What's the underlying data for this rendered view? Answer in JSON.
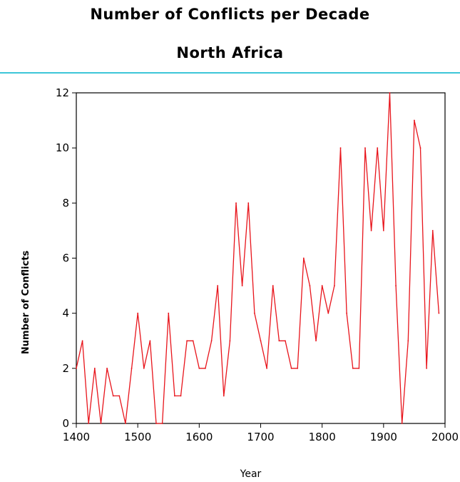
{
  "chart_data": {
    "type": "line",
    "title": "Number of Conflicts per Decade",
    "subtitle": "North Africa",
    "xlabel": "Year",
    "ylabel": "Number of Conflicts",
    "xlim": [
      1400,
      2000
    ],
    "ylim": [
      0,
      12
    ],
    "xticks": [
      1400,
      1500,
      1600,
      1700,
      1800,
      1900,
      2000
    ],
    "yticks": [
      0,
      2,
      4,
      6,
      8,
      10,
      12
    ],
    "grid": false,
    "legend": "none",
    "series": [
      {
        "color": "#e8141b",
        "x": [
          1400,
          1410,
          1420,
          1430,
          1440,
          1450,
          1460,
          1470,
          1480,
          1490,
          1500,
          1510,
          1520,
          1530,
          1540,
          1550,
          1560,
          1570,
          1580,
          1590,
          1600,
          1610,
          1620,
          1630,
          1640,
          1650,
          1660,
          1670,
          1680,
          1690,
          1700,
          1710,
          1720,
          1730,
          1740,
          1750,
          1760,
          1770,
          1780,
          1790,
          1800,
          1810,
          1820,
          1830,
          1840,
          1850,
          1860,
          1870,
          1880,
          1890,
          1900,
          1910,
          1920,
          1930,
          1940,
          1950,
          1960,
          1970,
          1980,
          1990
        ],
        "y": [
          2,
          3,
          0,
          2,
          0,
          2,
          1,
          1,
          0,
          2,
          4,
          2,
          3,
          0,
          0,
          4,
          1,
          1,
          3,
          3,
          2,
          2,
          3,
          5,
          1,
          3,
          8,
          5,
          8,
          4,
          3,
          2,
          5,
          3,
          3,
          2,
          2,
          6,
          5,
          3,
          5,
          4,
          5,
          10,
          4,
          2,
          2,
          10,
          7,
          10,
          7,
          12,
          5,
          0,
          3,
          11,
          10,
          2,
          7,
          4
        ]
      }
    ]
  }
}
